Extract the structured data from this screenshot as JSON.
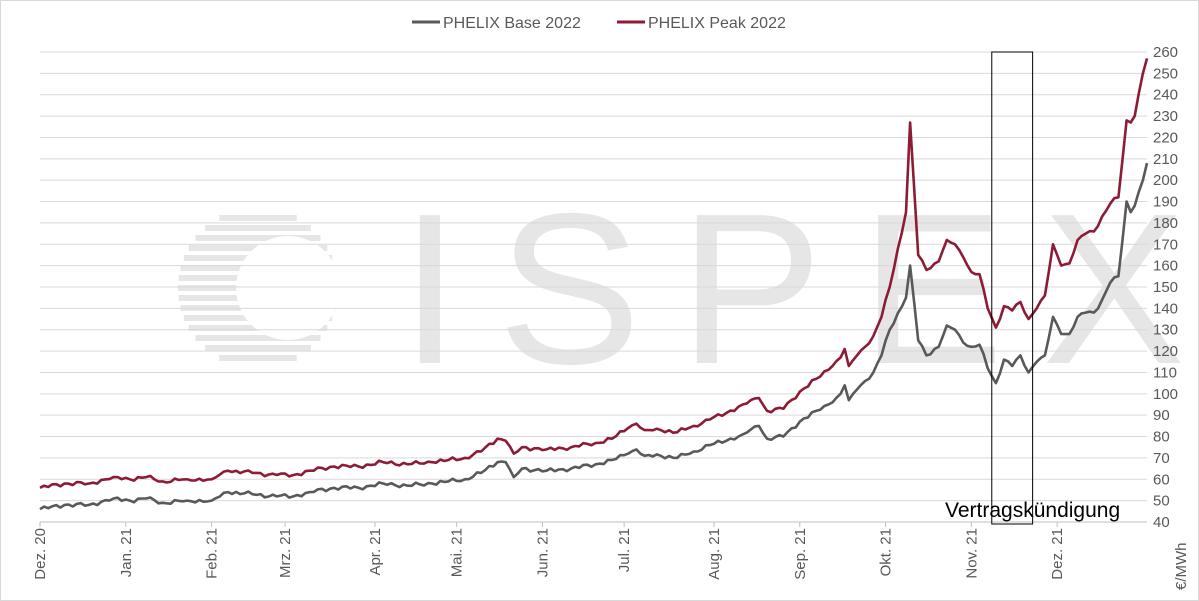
{
  "chart_data": {
    "type": "line",
    "title": "",
    "xlabel": "",
    "ylabel": "€/MWh",
    "ylim": [
      40,
      260
    ],
    "y_ticks": [
      40,
      50,
      60,
      70,
      80,
      90,
      100,
      110,
      120,
      130,
      140,
      150,
      160,
      170,
      180,
      190,
      200,
      210,
      220,
      230,
      240,
      250,
      260
    ],
    "y_axis_position": "right",
    "grid": true,
    "legend_position": "top-center",
    "x_tick_labels": [
      "Dez. 20",
      "Jan. 21",
      "Feb. 21",
      "Mrz. 21",
      "Apr. 21",
      "Mai. 21",
      "Jun. 21",
      "Jul. 21",
      "Aug. 21",
      "Sep. 21",
      "Okt. 21",
      "Nov. 21",
      "Dez. 21"
    ],
    "x_tick_label_index": [
      0,
      21,
      42,
      60,
      82,
      102,
      123,
      143,
      165,
      186,
      207,
      228,
      249
    ],
    "watermark": "ISPEX",
    "annotation": {
      "label": "Vertragskündigung",
      "x_start_index": 233,
      "x_end_index": 243,
      "y_range": [
        40,
        260
      ]
    },
    "series": [
      {
        "name": "PHELIX Base 2022",
        "color": "#595959",
        "keypoints": [
          [
            0,
            46
          ],
          [
            6,
            48
          ],
          [
            12,
            48
          ],
          [
            18,
            51
          ],
          [
            22,
            50
          ],
          [
            26,
            51
          ],
          [
            30,
            49
          ],
          [
            36,
            50
          ],
          [
            42,
            50
          ],
          [
            46,
            54
          ],
          [
            52,
            53
          ],
          [
            58,
            52
          ],
          [
            62,
            52
          ],
          [
            66,
            54
          ],
          [
            72,
            56
          ],
          [
            78,
            56
          ],
          [
            84,
            58
          ],
          [
            90,
            57
          ],
          [
            96,
            58
          ],
          [
            100,
            59
          ],
          [
            104,
            60
          ],
          [
            108,
            63
          ],
          [
            112,
            68
          ],
          [
            114,
            68
          ],
          [
            116,
            61
          ],
          [
            118,
            65
          ],
          [
            124,
            64
          ],
          [
            130,
            65
          ],
          [
            136,
            67
          ],
          [
            140,
            69
          ],
          [
            144,
            72
          ],
          [
            146,
            74
          ],
          [
            148,
            71
          ],
          [
            152,
            71
          ],
          [
            156,
            70
          ],
          [
            160,
            73
          ],
          [
            164,
            76
          ],
          [
            168,
            78
          ],
          [
            172,
            81
          ],
          [
            176,
            85
          ],
          [
            178,
            79
          ],
          [
            182,
            80
          ],
          [
            186,
            87
          ],
          [
            190,
            92
          ],
          [
            194,
            96
          ],
          [
            196,
            100
          ],
          [
            197,
            104
          ],
          [
            198,
            97
          ],
          [
            200,
            102
          ],
          [
            202,
            106
          ],
          [
            204,
            110
          ],
          [
            206,
            118
          ],
          [
            208,
            130
          ],
          [
            212,
            145
          ],
          [
            213,
            160
          ],
          [
            215,
            125
          ],
          [
            217,
            118
          ],
          [
            220,
            122
          ],
          [
            222,
            132
          ],
          [
            224,
            130
          ],
          [
            226,
            124
          ],
          [
            228,
            122
          ],
          [
            230,
            123
          ],
          [
            232,
            112
          ],
          [
            234,
            105
          ],
          [
            236,
            116
          ],
          [
            238,
            113
          ],
          [
            240,
            118
          ],
          [
            242,
            110
          ],
          [
            244,
            115
          ],
          [
            246,
            118
          ],
          [
            248,
            136
          ],
          [
            250,
            128
          ],
          [
            252,
            128
          ],
          [
            254,
            136
          ],
          [
            256,
            138
          ],
          [
            258,
            138
          ],
          [
            260,
            144
          ],
          [
            262,
            152
          ],
          [
            264,
            155
          ],
          [
            266,
            190
          ],
          [
            267,
            185
          ],
          [
            268,
            188
          ],
          [
            270,
            200
          ],
          [
            271,
            208
          ]
        ]
      },
      {
        "name": "PHELIX Peak 2022",
        "color": "#8c1c36",
        "keypoints": [
          [
            0,
            56
          ],
          [
            6,
            58
          ],
          [
            12,
            58
          ],
          [
            18,
            61
          ],
          [
            22,
            60
          ],
          [
            26,
            61
          ],
          [
            30,
            59
          ],
          [
            36,
            60
          ],
          [
            42,
            60
          ],
          [
            46,
            64
          ],
          [
            52,
            63
          ],
          [
            58,
            62
          ],
          [
            62,
            62
          ],
          [
            66,
            64
          ],
          [
            72,
            66
          ],
          [
            78,
            66
          ],
          [
            84,
            68
          ],
          [
            90,
            67
          ],
          [
            96,
            68
          ],
          [
            100,
            69
          ],
          [
            104,
            70
          ],
          [
            108,
            73
          ],
          [
            112,
            79
          ],
          [
            114,
            78
          ],
          [
            116,
            72
          ],
          [
            118,
            75
          ],
          [
            124,
            74
          ],
          [
            130,
            75
          ],
          [
            136,
            77
          ],
          [
            140,
            79
          ],
          [
            144,
            84
          ],
          [
            146,
            86
          ],
          [
            148,
            83
          ],
          [
            152,
            83
          ],
          [
            156,
            82
          ],
          [
            160,
            85
          ],
          [
            164,
            88
          ],
          [
            168,
            91
          ],
          [
            172,
            95
          ],
          [
            176,
            98
          ],
          [
            178,
            92
          ],
          [
            182,
            93
          ],
          [
            186,
            101
          ],
          [
            190,
            107
          ],
          [
            194,
            113
          ],
          [
            196,
            117
          ],
          [
            197,
            121
          ],
          [
            198,
            113
          ],
          [
            200,
            118
          ],
          [
            202,
            122
          ],
          [
            204,
            127
          ],
          [
            206,
            136
          ],
          [
            208,
            150
          ],
          [
            212,
            185
          ],
          [
            213,
            227
          ],
          [
            215,
            165
          ],
          [
            217,
            158
          ],
          [
            220,
            162
          ],
          [
            222,
            172
          ],
          [
            224,
            170
          ],
          [
            226,
            164
          ],
          [
            228,
            157
          ],
          [
            230,
            156
          ],
          [
            232,
            140
          ],
          [
            234,
            131
          ],
          [
            236,
            141
          ],
          [
            238,
            139
          ],
          [
            240,
            143
          ],
          [
            242,
            135
          ],
          [
            244,
            140
          ],
          [
            246,
            146
          ],
          [
            248,
            170
          ],
          [
            250,
            160
          ],
          [
            252,
            161
          ],
          [
            254,
            172
          ],
          [
            256,
            175
          ],
          [
            258,
            176
          ],
          [
            260,
            183
          ],
          [
            262,
            189
          ],
          [
            264,
            192
          ],
          [
            266,
            228
          ],
          [
            267,
            227
          ],
          [
            268,
            230
          ],
          [
            270,
            250
          ],
          [
            271,
            257
          ]
        ]
      }
    ]
  }
}
